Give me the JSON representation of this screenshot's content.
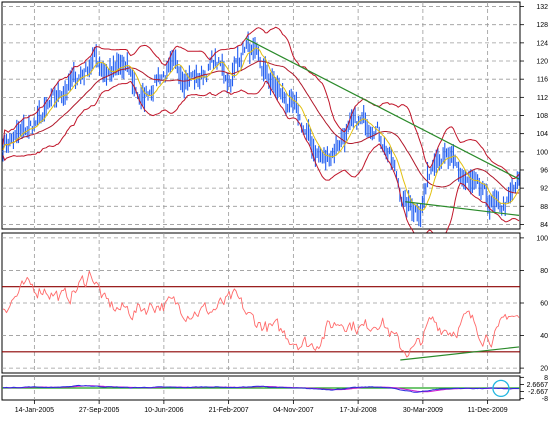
{
  "colors": {
    "price": "#1f5cf0",
    "band": "#c0162a",
    "ma_fast": "#e2c010",
    "ma_mid": "#b0182a",
    "trend": "#2a8a2a",
    "rsi": "#ff6a6a",
    "rsi_levels": "#8b0000",
    "osc_main": "#2a2adf",
    "osc_signal": "#d018d0",
    "osc_zero": "#1da51d",
    "highlight": "#22b7e0"
  },
  "chart_data": [
    {
      "type": "line",
      "name": "price-panel",
      "x_ticks": [
        "14-Jan-2005",
        "27-Sep-2005",
        "10-Jun-2006",
        "21-Feb-2007",
        "04-Nov-2007",
        "17-Jul-2008",
        "30-Mar-2009",
        "11-Dec-2009"
      ],
      "y_ticks": [
        "132",
        "128",
        "124",
        "120",
        "116",
        "112",
        "108",
        "104",
        "100",
        "96",
        "92",
        "88",
        "84"
      ],
      "ylim": [
        83,
        133
      ],
      "grid": true,
      "price_anchors": [
        [
          0,
          102
        ],
        [
          0.04,
          104
        ],
        [
          0.08,
          108
        ],
        [
          0.12,
          114
        ],
        [
          0.16,
          118
        ],
        [
          0.175,
          121
        ],
        [
          0.2,
          118
        ],
        [
          0.24,
          118
        ],
        [
          0.27,
          111
        ],
        [
          0.3,
          117
        ],
        [
          0.34,
          118
        ],
        [
          0.38,
          116
        ],
        [
          0.41,
          120
        ],
        [
          0.44,
          116
        ],
        [
          0.47,
          124
        ],
        [
          0.5,
          118
        ],
        [
          0.53,
          114
        ],
        [
          0.57,
          108
        ],
        [
          0.6,
          101
        ],
        [
          0.625,
          98
        ],
        [
          0.66,
          104
        ],
        [
          0.69,
          106
        ],
        [
          0.72,
          107
        ],
        [
          0.75,
          99
        ],
        [
          0.78,
          88
        ],
        [
          0.81,
          88
        ],
        [
          0.84,
          101
        ],
        [
          0.87,
          97
        ],
        [
          0.9,
          93
        ],
        [
          0.93,
          90
        ],
        [
          0.96,
          87
        ],
        [
          0.98,
          89
        ],
        [
          1.0,
          93
        ]
      ],
      "trendlines": [
        {
          "from": [
            0.47,
            125
          ],
          "to": [
            1.0,
            94
          ]
        },
        {
          "from": [
            0.78,
            89
          ],
          "to": [
            1.0,
            86
          ]
        }
      ]
    },
    {
      "type": "line",
      "name": "rsi-panel",
      "y_ticks": [
        "100",
        "80",
        "60",
        "40",
        "20"
      ],
      "ylim": [
        17,
        103
      ],
      "levels": [
        70,
        30
      ],
      "rsi_anchors": [
        [
          0,
          58
        ],
        [
          0.04,
          68
        ],
        [
          0.08,
          70
        ],
        [
          0.12,
          62
        ],
        [
          0.16,
          74
        ],
        [
          0.17,
          80
        ],
        [
          0.2,
          58
        ],
        [
          0.25,
          55
        ],
        [
          0.3,
          60
        ],
        [
          0.35,
          57
        ],
        [
          0.4,
          55
        ],
        [
          0.45,
          62
        ],
        [
          0.48,
          50
        ],
        [
          0.52,
          44
        ],
        [
          0.57,
          38
        ],
        [
          0.6,
          34
        ],
        [
          0.63,
          45
        ],
        [
          0.66,
          50
        ],
        [
          0.7,
          44
        ],
        [
          0.73,
          52
        ],
        [
          0.77,
          32
        ],
        [
          0.8,
          31
        ],
        [
          0.83,
          48
        ],
        [
          0.87,
          44
        ],
        [
          0.9,
          50
        ],
        [
          0.93,
          42
        ],
        [
          0.96,
          40
        ],
        [
          0.98,
          54
        ],
        [
          1.0,
          50
        ]
      ],
      "trendline": {
        "from": [
          0.77,
          25
        ],
        "to": [
          1.0,
          33
        ]
      }
    },
    {
      "type": "line",
      "name": "oscillator-panel",
      "y_ticks": [
        "8",
        "2.6667",
        "-2.667",
        "-8"
      ],
      "ylim": [
        -9,
        9
      ],
      "zero_line": 0,
      "osc_anchors": [
        [
          0,
          0.2
        ],
        [
          0.05,
          0.8
        ],
        [
          0.1,
          0.5
        ],
        [
          0.16,
          1.8
        ],
        [
          0.2,
          0.9
        ],
        [
          0.25,
          0.2
        ],
        [
          0.3,
          0.6
        ],
        [
          0.35,
          0.4
        ],
        [
          0.4,
          0.9
        ],
        [
          0.45,
          0.4
        ],
        [
          0.5,
          1.2
        ],
        [
          0.55,
          0.1
        ],
        [
          0.6,
          -0.6
        ],
        [
          0.64,
          -1.2
        ],
        [
          0.68,
          0.2
        ],
        [
          0.72,
          0.9
        ],
        [
          0.76,
          -0.5
        ],
        [
          0.8,
          -3.3
        ],
        [
          0.84,
          -1.0
        ],
        [
          0.87,
          -0.4
        ],
        [
          0.9,
          -0.2
        ],
        [
          0.93,
          -0.4
        ],
        [
          0.96,
          -0.2
        ],
        [
          0.98,
          -0.8
        ],
        [
          1.0,
          -0.3
        ]
      ]
    }
  ]
}
